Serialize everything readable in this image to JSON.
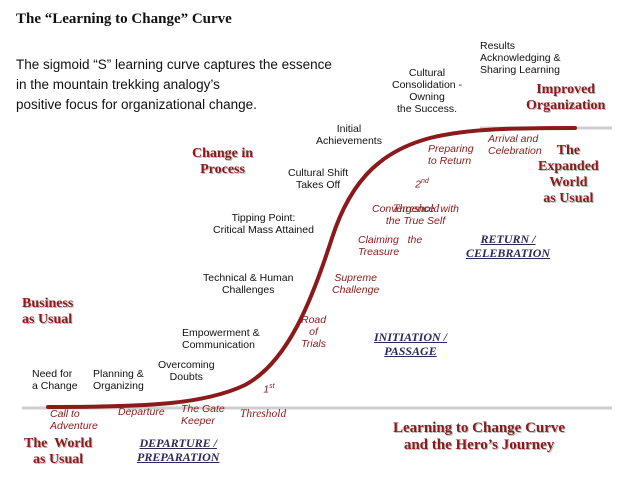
{
  "header": {
    "title": "The “Learning to Change” Curve",
    "description": "The sigmoid “S” learning curve captures the essence\nin the mountain trekking analogy’s\npositive focus for organizational change."
  },
  "phases": {
    "business_as_usual": "Business\nas Usual",
    "change_in_process": "Change in\nProcess",
    "improved_organization": "Improved\nOrganization",
    "expanded_world": "The\nExpanded\nWorld\nas Usual",
    "world_as_usual": "The  World\nas Usual",
    "departure_preparation": "DEPARTURE /\nPREPARATION",
    "initiation_passage": "INITIATION /\nPASSAGE",
    "return_celebration": "RETURN /\nCELEBRATION"
  },
  "change_steps": {
    "need_for_change": "Need for\na Change",
    "planning": "Planning &\nOrganizing",
    "overcoming_doubts": "Overcoming\nDoubts",
    "empowerment": "Empowerment &\nCommunication",
    "technical_human": "Technical & Human\nChallenges",
    "tipping_point": "Tipping Point:\nCritical Mass Attained",
    "cultural_shift": "Cultural Shift\nTakes Off",
    "initial_achievements": "Initial\nAchievements",
    "cultural_consolidation": "Cultural\nConsolidation -\nOwning\nthe Success.",
    "results": "Results\nAcknowledging &\nSharing Learning"
  },
  "hero_steps": {
    "call_to_adventure": "Call to\nAdventure",
    "departure": "Departure",
    "gate_keeper": "The Gate\nKeeper",
    "first_threshold_num": "1",
    "first_threshold_sup": "st",
    "first_threshold_word": "Threshold",
    "road_of_trials": "Road\nof\nTrials",
    "supreme_challenge": "Supreme\nChallenge",
    "claiming_treasure": "Claiming   the\nTreasure",
    "convergence": "Convergence  with\nthe True Self",
    "second_threshold_num": "2",
    "second_threshold_sup": "nd",
    "second_threshold_word": "Threshold",
    "preparing_to_return": "Preparing\nto Return",
    "arrival_celebration": "Arrival and\nCelebration"
  },
  "footer": {
    "caption": "Learning to Change Curve\nand the Hero’s Journey"
  },
  "colors": {
    "curve": "#8c1a1a",
    "accent_text": "#8c1a1a",
    "journey_text": "#2a2a5a"
  }
}
